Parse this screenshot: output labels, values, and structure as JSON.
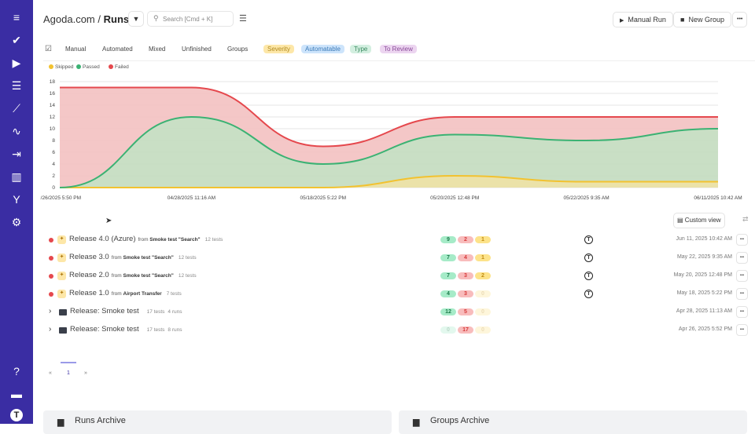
{
  "sidebar": {
    "color": "#3a2da3",
    "items": [
      "menu-icon",
      "check-icon",
      "play-circle-icon",
      "list-check-icon",
      "steps-icon",
      "pulse-icon",
      "import-icon",
      "chart-icon",
      "branch-icon",
      "gear-icon"
    ],
    "bottom": [
      "help-icon",
      "folder-icon",
      "avatar-icon"
    ]
  },
  "header": {
    "project": "Agoda.com",
    "separator": "/",
    "page": "Runs",
    "search_placeholder": "Search [Cmd + K]",
    "manual_run": "Manual Run",
    "new_group": "New Group",
    "more": "•••"
  },
  "tabs": [
    "Manual",
    "Automated",
    "Mixed",
    "Unfinished",
    "Groups"
  ],
  "filters": [
    {
      "label": "Severity",
      "bg": "#fde7a8",
      "fg": "#b08a20"
    },
    {
      "label": "Automatable",
      "bg": "#cde4fb",
      "fg": "#3b7ab8"
    },
    {
      "label": "Type",
      "bg": "#d3efe0",
      "fg": "#3a8a60"
    },
    {
      "label": "To Review",
      "bg": "#ecd5f0",
      "fg": "#8a4a99"
    }
  ],
  "chart_data": {
    "type": "area",
    "stacked": true,
    "grid": true,
    "legend": "top-left",
    "categories": [
      "/26/2025 5:50 PM",
      "04/28/2025 11:16 AM",
      "05/18/2025 5:22 PM",
      "05/20/2025 12:48 PM",
      "05/22/2025 9:35 AM",
      "06/11/2025 10:42 AM"
    ],
    "yticks": [
      0,
      2,
      4,
      6,
      8,
      10,
      12,
      14,
      16,
      18
    ],
    "ylim": [
      0,
      18
    ],
    "series": [
      {
        "name": "Skipped",
        "color": "#f2c230",
        "values": [
          0,
          0,
          0,
          2,
          1,
          1
        ]
      },
      {
        "name": "Passed",
        "color": "#3bb273",
        "values": [
          0,
          12,
          4,
          7,
          7,
          9
        ]
      },
      {
        "name": "Failed",
        "color": "#e5484d",
        "values": [
          17,
          5,
          3,
          3,
          4,
          2
        ]
      }
    ]
  },
  "custom_view": "Custom view",
  "runs": [
    {
      "type": "run",
      "name": "Release 4.0 (Azure)",
      "from": "from",
      "source": "Smoke test \"Search\"",
      "tests": "12 tests",
      "passed": "9",
      "failed": "2",
      "skipped": "1",
      "faded": [],
      "date": "Jun 11, 2025 10:42 AM",
      "user": true
    },
    {
      "type": "run",
      "name": "Release 3.0",
      "from": "from",
      "source": "Smoke test \"Search\"",
      "tests": "12 tests",
      "passed": "7",
      "failed": "4",
      "skipped": "1",
      "faded": [],
      "date": "May 22, 2025 9:35 AM",
      "user": true
    },
    {
      "type": "run",
      "name": "Release 2.0",
      "from": "from",
      "source": "Smoke test \"Search\"",
      "tests": "12 tests",
      "passed": "7",
      "failed": "3",
      "skipped": "2",
      "faded": [],
      "date": "May 20, 2025 12:48 PM",
      "user": true
    },
    {
      "type": "run",
      "name": "Release 1.0",
      "from": "from",
      "source": "Airport Transfer",
      "tests": "7 tests",
      "passed": "4",
      "failed": "3",
      "skipped": "0",
      "faded": [
        "skipped"
      ],
      "date": "May 18, 2025 5:22 PM",
      "user": true
    },
    {
      "type": "group",
      "name": "Release: Smoke test",
      "tests": "17 tests",
      "runs": "4 runs",
      "passed": "12",
      "failed": "5",
      "skipped": "0",
      "faded": [
        "skipped"
      ],
      "date": "Apr 28, 2025 11:13 AM",
      "user": false
    },
    {
      "type": "group",
      "name": "Release: Smoke test",
      "tests": "17 tests",
      "runs": "8 runs",
      "passed": "0",
      "failed": "17",
      "skipped": "0",
      "faded": [
        "passed",
        "skipped"
      ],
      "date": "Apr 26, 2025 5:52 PM",
      "user": false
    }
  ],
  "pagination": {
    "prev": "«",
    "page": "1",
    "next": "»"
  },
  "archives": {
    "runs": "Runs Archive",
    "groups": "Groups Archive"
  }
}
